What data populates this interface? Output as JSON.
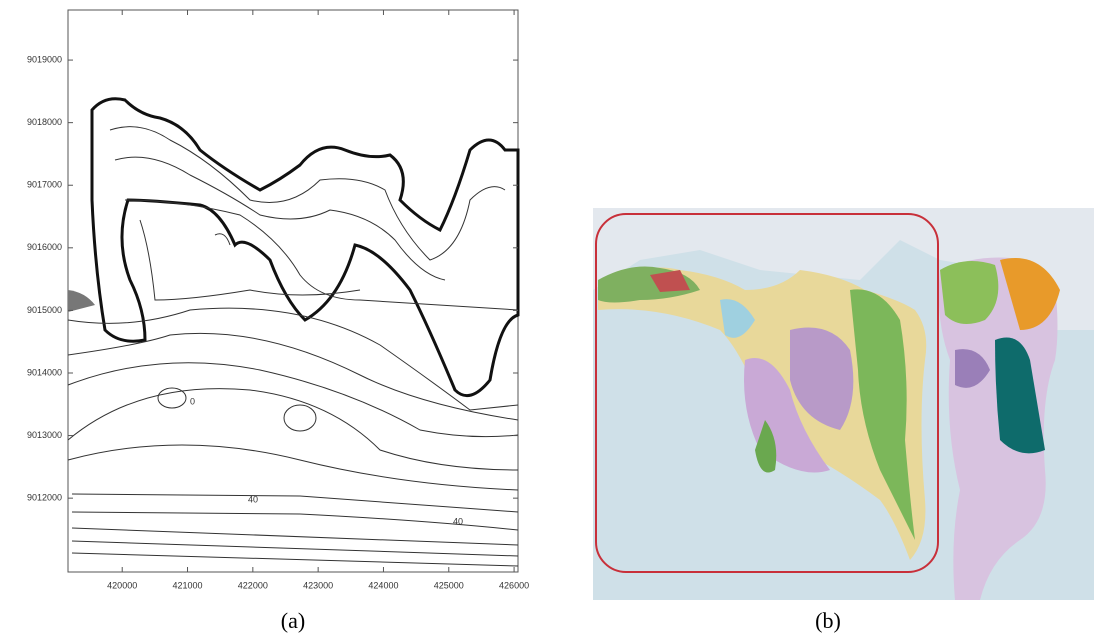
{
  "panels": [
    {
      "caption": "(a)",
      "xlim": [
        419170,
        426060
      ],
      "ylim": [
        9010820,
        9019800
      ],
      "xticks": [
        420000,
        421000,
        422000,
        423000,
        424000,
        425000,
        426000
      ],
      "yticks": [
        9012000,
        9013000,
        9014000,
        9015000,
        9016000,
        9017000,
        9018000,
        9019000
      ],
      "contour_labels": [
        "0",
        "40",
        "40"
      ]
    },
    {
      "caption": "(b)"
    }
  ]
}
